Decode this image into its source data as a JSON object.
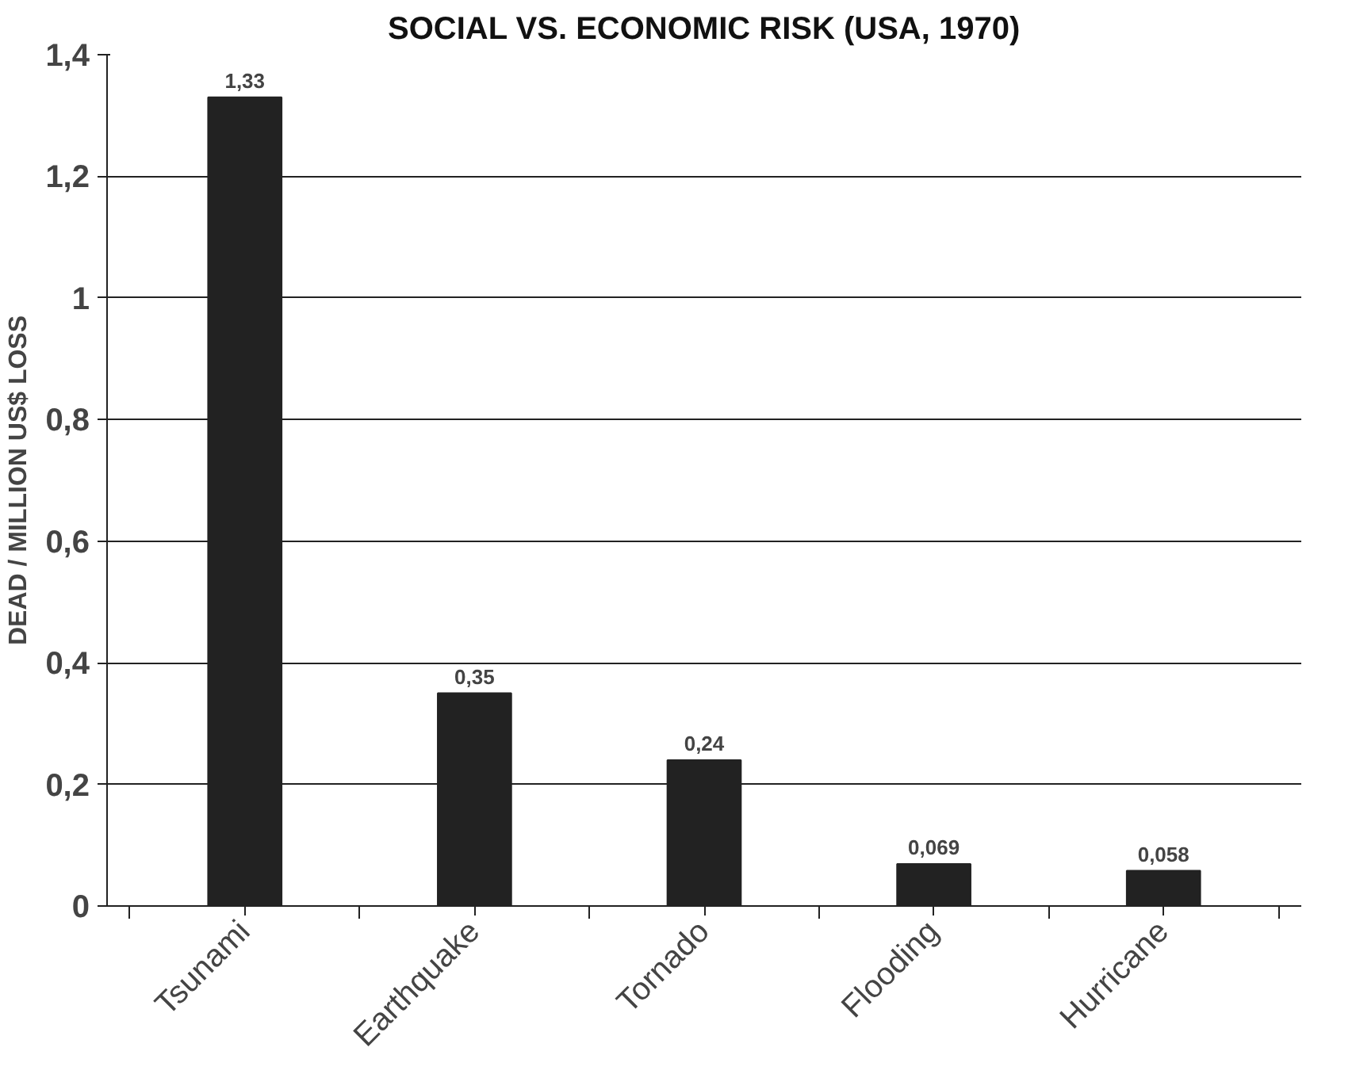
{
  "chart_data": {
    "type": "bar",
    "title": "SOCIAL VS. ECONOMIC RISK (USA, 1970)",
    "ylabel": "DEAD / MILLION US$ LOSS",
    "categories": [
      "Tsunami",
      "Earthquake",
      "Tornado",
      "Flooding",
      "Hurricane"
    ],
    "values": [
      1.33,
      0.35,
      0.24,
      0.069,
      0.058
    ],
    "value_labels": [
      "1,33",
      "0,35",
      "0,24",
      "0,069",
      "0,058"
    ],
    "color": "#222222",
    "ylim": [
      0,
      1.4
    ],
    "yticks": [
      {
        "value": 0,
        "label": "0"
      },
      {
        "value": 0.2,
        "label": "0,2"
      },
      {
        "value": 0.4,
        "label": "0,4"
      },
      {
        "value": 0.6,
        "label": "0,6"
      },
      {
        "value": 0.8,
        "label": "0,8"
      },
      {
        "value": 1,
        "label": "1"
      },
      {
        "value": 1.2,
        "label": "1,2"
      },
      {
        "value": 1.4,
        "label": "1,4"
      }
    ],
    "grid": "y"
  }
}
